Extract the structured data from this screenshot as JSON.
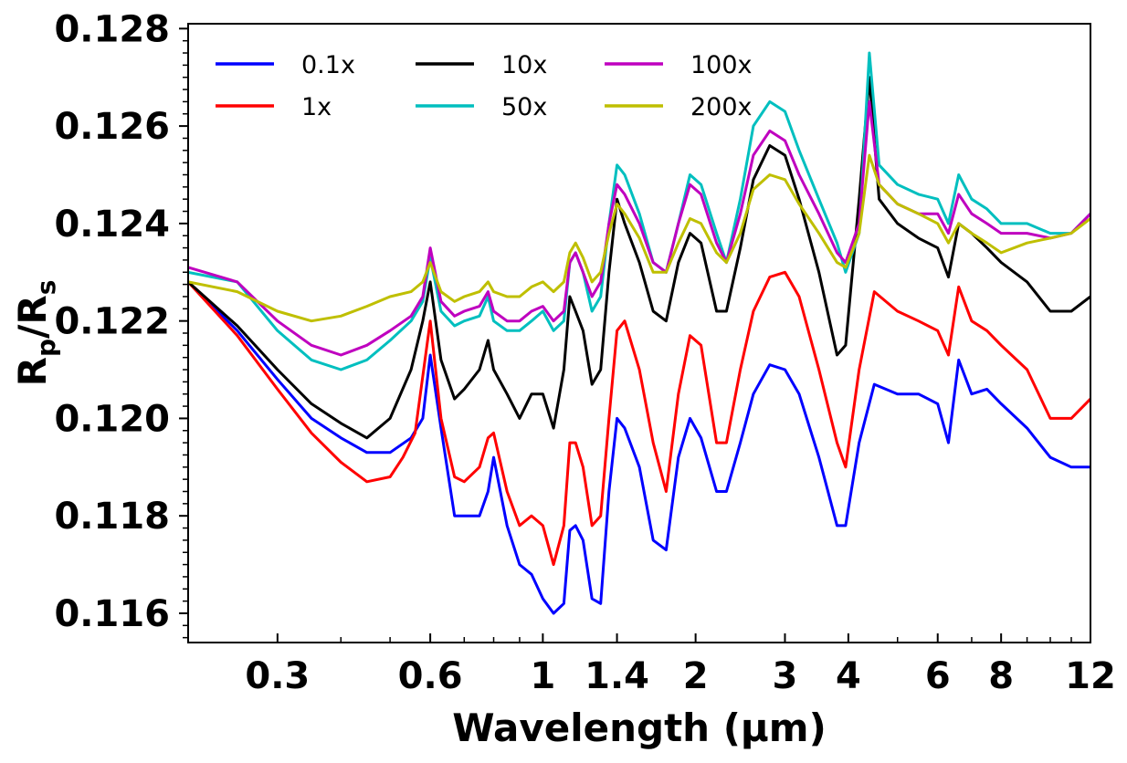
{
  "chart_data": {
    "type": "line",
    "title": "",
    "xlabel": "Wavelength (μm)",
    "ylabel_main": "R",
    "ylabel_sub1": "p",
    "ylabel_slash": "/R",
    "ylabel_sub2": "s",
    "xscale": "log",
    "xlim": [
      0.2,
      12
    ],
    "ylim": [
      0.1154,
      0.1281
    ],
    "grid": false,
    "legend_position": "top-left",
    "x_ticks": [
      {
        "value": 0.3,
        "label": "0.3"
      },
      {
        "value": 0.6,
        "label": "0.6"
      },
      {
        "value": 1,
        "label": "1"
      },
      {
        "value": 1.4,
        "label": "1.4"
      },
      {
        "value": 2,
        "label": "2"
      },
      {
        "value": 3,
        "label": "3"
      },
      {
        "value": 4,
        "label": "4"
      },
      {
        "value": 6,
        "label": "6"
      },
      {
        "value": 8,
        "label": "8"
      },
      {
        "value": 12,
        "label": "12"
      }
    ],
    "y_ticks": [
      {
        "value": 0.116,
        "label": "0.116"
      },
      {
        "value": 0.118,
        "label": "0.118"
      },
      {
        "value": 0.12,
        "label": "0.120"
      },
      {
        "value": 0.122,
        "label": "0.122"
      },
      {
        "value": 0.124,
        "label": "0.124"
      },
      {
        "value": 0.126,
        "label": "0.126"
      },
      {
        "value": 0.128,
        "label": "0.128"
      }
    ],
    "series": [
      {
        "name": "0.1x",
        "color": "#0000ff",
        "x": [
          0.2,
          0.25,
          0.3,
          0.35,
          0.4,
          0.45,
          0.5,
          0.55,
          0.58,
          0.6,
          0.63,
          0.67,
          0.7,
          0.75,
          0.78,
          0.8,
          0.85,
          0.9,
          0.95,
          1.0,
          1.05,
          1.1,
          1.13,
          1.16,
          1.2,
          1.25,
          1.3,
          1.35,
          1.4,
          1.45,
          1.55,
          1.65,
          1.75,
          1.85,
          1.95,
          2.05,
          2.2,
          2.3,
          2.45,
          2.6,
          2.8,
          3.0,
          3.2,
          3.5,
          3.8,
          3.95,
          4.2,
          4.5,
          5.0,
          5.5,
          6.0,
          6.3,
          6.6,
          7.0,
          7.5,
          8.0,
          9.0,
          10.0,
          11.0,
          12.0
        ],
        "y": [
          0.1228,
          0.1218,
          0.1208,
          0.12,
          0.1196,
          0.1193,
          0.1193,
          0.1196,
          0.12,
          0.1213,
          0.1198,
          0.118,
          0.118,
          0.118,
          0.1185,
          0.1192,
          0.1178,
          0.117,
          0.1168,
          0.1163,
          0.116,
          0.1162,
          0.1177,
          0.1178,
          0.1175,
          0.1163,
          0.1162,
          0.1185,
          0.12,
          0.1198,
          0.119,
          0.1175,
          0.1173,
          0.1192,
          0.12,
          0.1196,
          0.1185,
          0.1185,
          0.1195,
          0.1205,
          0.1211,
          0.121,
          0.1205,
          0.1192,
          0.1178,
          0.1178,
          0.1195,
          0.1207,
          0.1205,
          0.1205,
          0.1203,
          0.1195,
          0.1212,
          0.1205,
          0.1206,
          0.1203,
          0.1198,
          0.1192,
          0.119,
          0.119
        ]
      },
      {
        "name": "1x",
        "color": "#ff0000",
        "x": [
          0.2,
          0.25,
          0.3,
          0.35,
          0.4,
          0.45,
          0.5,
          0.53,
          0.56,
          0.6,
          0.63,
          0.67,
          0.7,
          0.75,
          0.78,
          0.8,
          0.85,
          0.9,
          0.95,
          1.0,
          1.05,
          1.1,
          1.13,
          1.16,
          1.2,
          1.25,
          1.3,
          1.35,
          1.4,
          1.45,
          1.55,
          1.65,
          1.75,
          1.85,
          1.95,
          2.05,
          2.2,
          2.3,
          2.45,
          2.6,
          2.8,
          3.0,
          3.2,
          3.5,
          3.8,
          3.95,
          4.2,
          4.5,
          5.0,
          5.5,
          6.0,
          6.3,
          6.6,
          7.0,
          7.5,
          8.0,
          9.0,
          10.0,
          11.0,
          12.0
        ],
        "y": [
          0.1228,
          0.1217,
          0.1206,
          0.1197,
          0.1191,
          0.1187,
          0.1188,
          0.1192,
          0.1197,
          0.122,
          0.12,
          0.1188,
          0.1187,
          0.119,
          0.1196,
          0.1197,
          0.1185,
          0.1178,
          0.118,
          0.1178,
          0.117,
          0.1178,
          0.1195,
          0.1195,
          0.119,
          0.1178,
          0.118,
          0.12,
          0.1218,
          0.122,
          0.121,
          0.1195,
          0.1185,
          0.1205,
          0.1217,
          0.1215,
          0.1195,
          0.1195,
          0.121,
          0.1222,
          0.1229,
          0.123,
          0.1225,
          0.121,
          0.1195,
          0.119,
          0.121,
          0.1226,
          0.1222,
          0.122,
          0.1218,
          0.1213,
          0.1227,
          0.122,
          0.1218,
          0.1215,
          0.121,
          0.12,
          0.12,
          0.1204
        ]
      },
      {
        "name": "10x",
        "color": "#000000",
        "x": [
          0.2,
          0.25,
          0.3,
          0.35,
          0.4,
          0.45,
          0.5,
          0.55,
          0.58,
          0.6,
          0.63,
          0.67,
          0.7,
          0.75,
          0.78,
          0.8,
          0.85,
          0.9,
          0.95,
          1.0,
          1.05,
          1.1,
          1.13,
          1.16,
          1.2,
          1.25,
          1.3,
          1.35,
          1.4,
          1.45,
          1.55,
          1.65,
          1.75,
          1.85,
          1.95,
          2.05,
          2.2,
          2.3,
          2.45,
          2.6,
          2.8,
          3.0,
          3.2,
          3.5,
          3.8,
          3.95,
          4.2,
          4.4,
          4.6,
          5.0,
          5.5,
          6.0,
          6.3,
          6.6,
          7.0,
          7.5,
          8.0,
          9.0,
          10.0,
          11.0,
          12.0
        ],
        "y": [
          0.1228,
          0.1219,
          0.121,
          0.1203,
          0.1199,
          0.1196,
          0.12,
          0.121,
          0.122,
          0.1228,
          0.1212,
          0.1204,
          0.1206,
          0.121,
          0.1216,
          0.121,
          0.1205,
          0.12,
          0.1205,
          0.1205,
          0.1198,
          0.121,
          0.1225,
          0.1222,
          0.1218,
          0.1207,
          0.121,
          0.123,
          0.1245,
          0.124,
          0.1232,
          0.1222,
          0.122,
          0.1232,
          0.1238,
          0.1236,
          0.1222,
          0.1222,
          0.1235,
          0.1249,
          0.1256,
          0.1254,
          0.1245,
          0.123,
          0.1213,
          0.1215,
          0.1245,
          0.127,
          0.1245,
          0.124,
          0.1237,
          0.1235,
          0.1229,
          0.124,
          0.1238,
          0.1235,
          0.1232,
          0.1228,
          0.1222,
          0.1222,
          0.1225
        ]
      },
      {
        "name": "50x",
        "color": "#00bfbf",
        "x": [
          0.2,
          0.25,
          0.3,
          0.35,
          0.4,
          0.45,
          0.5,
          0.55,
          0.58,
          0.6,
          0.63,
          0.67,
          0.7,
          0.75,
          0.78,
          0.8,
          0.85,
          0.9,
          0.95,
          1.0,
          1.05,
          1.1,
          1.13,
          1.16,
          1.2,
          1.25,
          1.3,
          1.35,
          1.4,
          1.45,
          1.55,
          1.65,
          1.75,
          1.85,
          1.95,
          2.05,
          2.2,
          2.3,
          2.45,
          2.6,
          2.8,
          3.0,
          3.2,
          3.5,
          3.8,
          3.95,
          4.2,
          4.4,
          4.6,
          5.0,
          5.5,
          6.0,
          6.3,
          6.6,
          7.0,
          7.5,
          8.0,
          9.0,
          10.0,
          11.0,
          12.0
        ],
        "y": [
          0.123,
          0.1228,
          0.1218,
          0.1212,
          0.121,
          0.1212,
          0.1216,
          0.122,
          0.1224,
          0.1233,
          0.1222,
          0.1219,
          0.122,
          0.1221,
          0.1225,
          0.122,
          0.1218,
          0.1218,
          0.122,
          0.1222,
          0.1218,
          0.122,
          0.1232,
          0.1234,
          0.123,
          0.1222,
          0.1225,
          0.124,
          0.1252,
          0.125,
          0.1242,
          0.1232,
          0.123,
          0.124,
          0.125,
          0.1248,
          0.1238,
          0.1232,
          0.1245,
          0.126,
          0.1265,
          0.1263,
          0.1255,
          0.1245,
          0.1236,
          0.123,
          0.1238,
          0.1275,
          0.1252,
          0.1248,
          0.1246,
          0.1245,
          0.124,
          0.125,
          0.1245,
          0.1243,
          0.124,
          0.124,
          0.1238,
          0.1238,
          0.1242
        ]
      },
      {
        "name": "100x",
        "color": "#bf00bf",
        "x": [
          0.2,
          0.25,
          0.3,
          0.35,
          0.4,
          0.45,
          0.5,
          0.55,
          0.58,
          0.6,
          0.63,
          0.67,
          0.7,
          0.75,
          0.78,
          0.8,
          0.85,
          0.9,
          0.95,
          1.0,
          1.05,
          1.1,
          1.13,
          1.16,
          1.2,
          1.25,
          1.3,
          1.35,
          1.4,
          1.45,
          1.55,
          1.65,
          1.75,
          1.85,
          1.95,
          2.05,
          2.2,
          2.3,
          2.45,
          2.6,
          2.8,
          3.0,
          3.2,
          3.5,
          3.8,
          3.95,
          4.2,
          4.4,
          4.6,
          5.0,
          5.5,
          6.0,
          6.3,
          6.6,
          7.0,
          7.5,
          8.0,
          9.0,
          10.0,
          11.0,
          12.0
        ],
        "y": [
          0.1231,
          0.1228,
          0.122,
          0.1215,
          0.1213,
          0.1215,
          0.1218,
          0.1221,
          0.1225,
          0.1235,
          0.1224,
          0.1221,
          0.1222,
          0.1223,
          0.1226,
          0.1222,
          0.122,
          0.122,
          0.1222,
          0.1223,
          0.122,
          0.1222,
          0.1232,
          0.1234,
          0.123,
          0.1225,
          0.1228,
          0.124,
          0.1248,
          0.1246,
          0.124,
          0.1232,
          0.123,
          0.124,
          0.1248,
          0.1246,
          0.1236,
          0.1232,
          0.1242,
          0.1254,
          0.1259,
          0.1257,
          0.125,
          0.1242,
          0.1234,
          0.1232,
          0.124,
          0.1265,
          0.1248,
          0.1244,
          0.1242,
          0.1242,
          0.1238,
          0.1246,
          0.1242,
          0.124,
          0.1238,
          0.1238,
          0.1237,
          0.1238,
          0.1242
        ]
      },
      {
        "name": "200x",
        "color": "#bfbf00",
        "x": [
          0.2,
          0.25,
          0.3,
          0.35,
          0.4,
          0.45,
          0.5,
          0.55,
          0.58,
          0.6,
          0.63,
          0.67,
          0.7,
          0.75,
          0.78,
          0.8,
          0.85,
          0.9,
          0.95,
          1.0,
          1.05,
          1.1,
          1.13,
          1.16,
          1.2,
          1.25,
          1.3,
          1.35,
          1.4,
          1.45,
          1.55,
          1.65,
          1.75,
          1.85,
          1.95,
          2.05,
          2.2,
          2.3,
          2.45,
          2.6,
          2.8,
          3.0,
          3.2,
          3.5,
          3.8,
          3.95,
          4.2,
          4.4,
          4.6,
          5.0,
          5.5,
          6.0,
          6.3,
          6.6,
          7.0,
          7.5,
          8.0,
          9.0,
          10.0,
          11.0,
          12.0
        ],
        "y": [
          0.1228,
          0.1226,
          0.1222,
          0.122,
          0.1221,
          0.1223,
          0.1225,
          0.1226,
          0.1228,
          0.1232,
          0.1226,
          0.1224,
          0.1225,
          0.1226,
          0.1228,
          0.1226,
          0.1225,
          0.1225,
          0.1227,
          0.1228,
          0.1226,
          0.1228,
          0.1234,
          0.1236,
          0.1233,
          0.1228,
          0.123,
          0.1238,
          0.1244,
          0.1242,
          0.1237,
          0.123,
          0.123,
          0.1236,
          0.1241,
          0.124,
          0.1234,
          0.1232,
          0.1238,
          0.1247,
          0.125,
          0.1249,
          0.1244,
          0.1238,
          0.1232,
          0.1231,
          0.1238,
          0.1254,
          0.1248,
          0.1244,
          0.1242,
          0.124,
          0.1236,
          0.124,
          0.1238,
          0.1236,
          0.1234,
          0.1236,
          0.1237,
          0.1238,
          0.1241
        ]
      }
    ]
  }
}
